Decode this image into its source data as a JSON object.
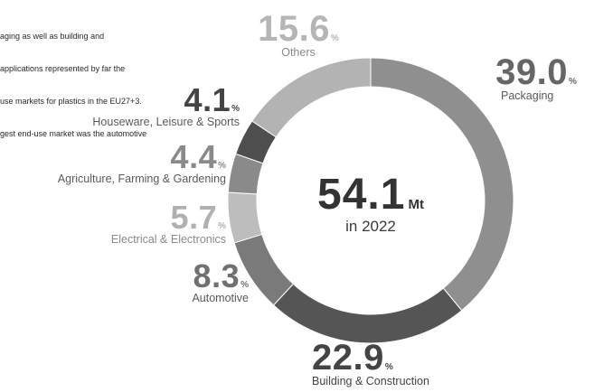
{
  "intro_text": [
    "aging as well as building and",
    "applications represented by far the",
    "use markets for plastics in the EU27+3.",
    "gest end-use market was the automotive"
  ],
  "center": {
    "total": "54.1",
    "unit": "Mt",
    "year_label": "in 2022"
  },
  "chart_data": {
    "type": "pie",
    "donut": true,
    "total": 54.1,
    "total_unit": "Mt",
    "percent_unit": "%",
    "slices": [
      {
        "label": "Packaging",
        "value": 39.0,
        "value_text": "39.0",
        "color": "#8f8f8f"
      },
      {
        "label": "Building & Construction",
        "value": 22.9,
        "value_text": "22.9",
        "color": "#555555"
      },
      {
        "label": "Automotive",
        "value": 8.3,
        "value_text": "8.3",
        "color": "#7a7a7a"
      },
      {
        "label": "Electrical & Electronics",
        "value": 5.7,
        "value_text": "5.7",
        "color": "#bdbdbd"
      },
      {
        "label": "Agriculture, Farming & Gardening",
        "value": 4.4,
        "value_text": "4.4",
        "color": "#8a8a8a"
      },
      {
        "label": "Houseware, Leisure & Sports",
        "value": 4.1,
        "value_text": "4.1",
        "color": "#4e4e4e"
      },
      {
        "label": "Others",
        "value": 15.6,
        "value_text": "15.6",
        "color": "#b3b3b3"
      }
    ]
  }
}
